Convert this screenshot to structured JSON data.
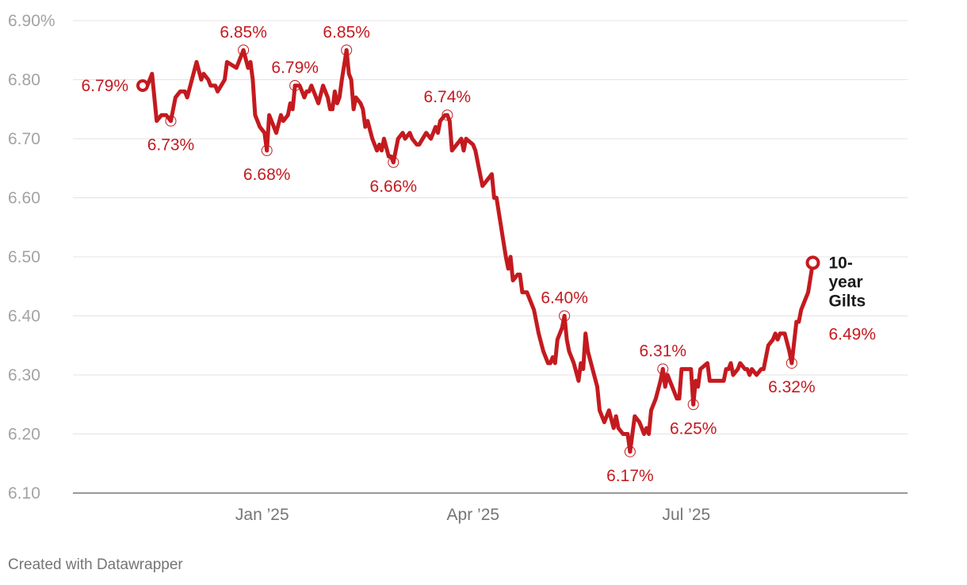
{
  "chart_data": {
    "type": "line",
    "y_ticks": [
      "6.90%",
      "6.80",
      "6.70",
      "6.60",
      "6.50",
      "6.40",
      "6.30",
      "6.20",
      "6.10"
    ],
    "y_tick_values": [
      6.9,
      6.8,
      6.7,
      6.6,
      6.5,
      6.4,
      6.3,
      6.2,
      6.1
    ],
    "ylim": [
      6.1,
      6.9
    ],
    "x_ticks": [
      {
        "label": "Jan ’25",
        "x": 51
      },
      {
        "label": "Apr ’25",
        "x": 141
      },
      {
        "label": "Jul ’25",
        "x": 232
      }
    ],
    "xlim": [
      0,
      320
    ],
    "series": [
      {
        "name": "10-year Gilts",
        "color": "#c41a1f",
        "end_label": "6.49%",
        "points": [
          [
            0,
            6.79
          ],
          [
            2,
            6.79
          ],
          [
            3,
            6.8
          ],
          [
            4,
            6.81
          ],
          [
            6,
            6.73
          ],
          [
            8,
            6.74
          ],
          [
            10,
            6.74
          ],
          [
            12,
            6.73
          ],
          [
            14,
            6.77
          ],
          [
            16,
            6.78
          ],
          [
            18,
            6.78
          ],
          [
            19,
            6.77
          ],
          [
            21,
            6.8
          ],
          [
            23,
            6.83
          ],
          [
            25,
            6.8
          ],
          [
            26,
            6.81
          ],
          [
            28,
            6.8
          ],
          [
            29,
            6.79
          ],
          [
            31,
            6.79
          ],
          [
            32,
            6.78
          ],
          [
            35,
            6.8
          ],
          [
            36,
            6.83
          ],
          [
            40,
            6.82
          ],
          [
            43,
            6.85
          ],
          [
            45,
            6.82
          ],
          [
            46,
            6.83
          ],
          [
            47,
            6.8
          ],
          [
            48,
            6.74
          ],
          [
            50,
            6.72
          ],
          [
            52,
            6.71
          ],
          [
            53,
            6.68
          ],
          [
            54,
            6.74
          ],
          [
            57,
            6.71
          ],
          [
            59,
            6.74
          ],
          [
            60,
            6.73
          ],
          [
            62,
            6.74
          ],
          [
            63,
            6.76
          ],
          [
            64,
            6.75
          ],
          [
            65,
            6.79
          ],
          [
            67,
            6.79
          ],
          [
            69,
            6.77
          ],
          [
            70,
            6.78
          ],
          [
            71,
            6.78
          ],
          [
            72,
            6.79
          ],
          [
            74,
            6.77
          ],
          [
            75,
            6.76
          ],
          [
            77,
            6.79
          ],
          [
            79,
            6.77
          ],
          [
            80,
            6.75
          ],
          [
            81,
            6.75
          ],
          [
            82,
            6.78
          ],
          [
            83,
            6.76
          ],
          [
            84,
            6.77
          ],
          [
            85,
            6.8
          ],
          [
            87,
            6.85
          ],
          [
            88,
            6.81
          ],
          [
            89,
            6.8
          ],
          [
            90,
            6.75
          ],
          [
            91,
            6.77
          ],
          [
            93,
            6.76
          ],
          [
            94,
            6.75
          ],
          [
            95,
            6.72
          ],
          [
            96,
            6.73
          ],
          [
            98,
            6.7
          ],
          [
            100,
            6.68
          ],
          [
            101,
            6.69
          ],
          [
            102,
            6.68
          ],
          [
            103,
            6.7
          ],
          [
            105,
            6.67
          ],
          [
            106,
            6.67
          ],
          [
            107,
            6.66
          ],
          [
            109,
            6.7
          ],
          [
            111,
            6.71
          ],
          [
            112,
            6.7
          ],
          [
            114,
            6.71
          ],
          [
            115,
            6.7
          ],
          [
            117,
            6.69
          ],
          [
            118,
            6.69
          ],
          [
            121,
            6.71
          ],
          [
            123,
            6.7
          ],
          [
            124,
            6.71
          ],
          [
            125,
            6.72
          ],
          [
            126,
            6.71
          ],
          [
            127,
            6.73
          ],
          [
            129,
            6.74
          ],
          [
            130,
            6.74
          ],
          [
            131,
            6.73
          ],
          [
            132,
            6.68
          ],
          [
            134,
            6.69
          ],
          [
            136,
            6.7
          ],
          [
            137,
            6.68
          ],
          [
            138,
            6.7
          ],
          [
            141,
            6.69
          ],
          [
            142,
            6.68
          ],
          [
            143,
            6.66
          ],
          [
            145,
            6.62
          ],
          [
            147,
            6.63
          ],
          [
            149,
            6.64
          ],
          [
            150,
            6.6
          ],
          [
            151,
            6.6
          ],
          [
            153,
            6.55
          ],
          [
            155,
            6.5
          ],
          [
            156,
            6.48
          ],
          [
            157,
            6.5
          ],
          [
            158,
            6.46
          ],
          [
            160,
            6.47
          ],
          [
            161,
            6.47
          ],
          [
            162,
            6.44
          ],
          [
            164,
            6.44
          ],
          [
            167,
            6.41
          ],
          [
            169,
            6.37
          ],
          [
            171,
            6.34
          ],
          [
            173,
            6.32
          ],
          [
            174,
            6.32
          ],
          [
            175,
            6.33
          ],
          [
            176,
            6.32
          ],
          [
            177,
            6.36
          ],
          [
            179,
            6.38
          ],
          [
            180,
            6.4
          ],
          [
            181,
            6.36
          ],
          [
            182,
            6.34
          ],
          [
            184,
            6.32
          ],
          [
            186,
            6.29
          ],
          [
            187,
            6.32
          ],
          [
            188,
            6.31
          ],
          [
            189,
            6.37
          ],
          [
            190,
            6.34
          ],
          [
            192,
            6.31
          ],
          [
            194,
            6.28
          ],
          [
            195,
            6.24
          ],
          [
            197,
            6.22
          ],
          [
            199,
            6.24
          ],
          [
            201,
            6.21
          ],
          [
            202,
            6.23
          ],
          [
            203,
            6.21
          ],
          [
            205,
            6.2
          ],
          [
            207,
            6.2
          ],
          [
            208,
            6.17
          ],
          [
            210,
            6.23
          ],
          [
            212,
            6.22
          ],
          [
            213,
            6.21
          ],
          [
            214,
            6.2
          ],
          [
            215,
            6.21
          ],
          [
            216,
            6.2
          ],
          [
            217,
            6.24
          ],
          [
            219,
            6.26
          ],
          [
            221,
            6.29
          ],
          [
            222,
            6.31
          ],
          [
            223,
            6.28
          ],
          [
            224,
            6.3
          ],
          [
            226,
            6.28
          ],
          [
            228,
            6.26
          ],
          [
            229,
            6.26
          ],
          [
            230,
            6.31
          ],
          [
            233,
            6.31
          ],
          [
            234,
            6.31
          ],
          [
            235,
            6.25
          ],
          [
            236,
            6.29
          ],
          [
            237,
            6.28
          ],
          [
            238,
            6.31
          ],
          [
            241,
            6.32
          ],
          [
            242,
            6.29
          ],
          [
            245,
            6.29
          ],
          [
            248,
            6.29
          ],
          [
            249,
            6.31
          ],
          [
            250,
            6.31
          ],
          [
            251,
            6.32
          ],
          [
            252,
            6.3
          ],
          [
            254,
            6.31
          ],
          [
            255,
            6.32
          ],
          [
            257,
            6.31
          ],
          [
            258,
            6.31
          ],
          [
            259,
            6.3
          ],
          [
            260,
            6.31
          ],
          [
            262,
            6.3
          ],
          [
            264,
            6.31
          ],
          [
            265,
            6.31
          ],
          [
            267,
            6.35
          ],
          [
            269,
            6.36
          ],
          [
            270,
            6.37
          ],
          [
            271,
            6.36
          ],
          [
            272,
            6.37
          ],
          [
            274,
            6.37
          ],
          [
            276,
            6.34
          ],
          [
            277,
            6.32
          ],
          [
            279,
            6.39
          ],
          [
            280,
            6.39
          ],
          [
            281,
            6.41
          ],
          [
            284,
            6.44
          ],
          [
            286,
            6.49
          ]
        ]
      }
    ],
    "annotations": [
      {
        "label": "6.79%",
        "x": 0,
        "y": 6.79,
        "pos": "left"
      },
      {
        "label": "6.73%",
        "x": 12,
        "y": 6.73,
        "pos": "below"
      },
      {
        "label": "6.85%",
        "x": 43,
        "y": 6.85,
        "pos": "above"
      },
      {
        "label": "6.68%",
        "x": 53,
        "y": 6.68,
        "pos": "below"
      },
      {
        "label": "6.79%",
        "x": 65,
        "y": 6.79,
        "pos": "above"
      },
      {
        "label": "6.85%",
        "x": 87,
        "y": 6.85,
        "pos": "above"
      },
      {
        "label": "6.66%",
        "x": 107,
        "y": 6.66,
        "pos": "below"
      },
      {
        "label": "6.74%",
        "x": 130,
        "y": 6.74,
        "pos": "above"
      },
      {
        "label": "6.40%",
        "x": 180,
        "y": 6.4,
        "pos": "above"
      },
      {
        "label": "6.17%",
        "x": 208,
        "y": 6.17,
        "pos": "below"
      },
      {
        "label": "6.31%",
        "x": 222,
        "y": 6.31,
        "pos": "above"
      },
      {
        "label": "6.25%",
        "x": 235,
        "y": 6.25,
        "pos": "below"
      },
      {
        "label": "6.32%",
        "x": 277,
        "y": 6.32,
        "pos": "below"
      }
    ],
    "title": "",
    "xlabel": "",
    "ylabel": "",
    "grid": true
  },
  "footer": {
    "credit": "Created with Datawrapper"
  }
}
